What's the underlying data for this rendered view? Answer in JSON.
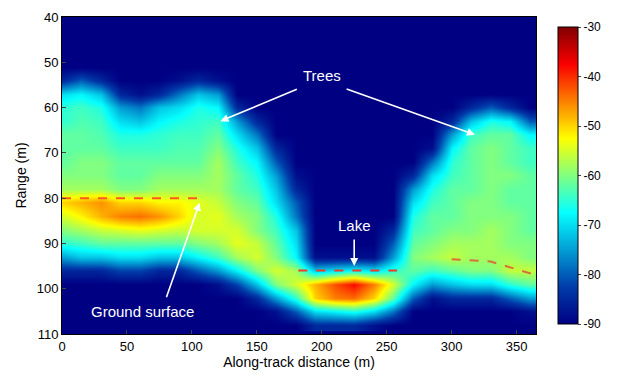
{
  "chart_data": {
    "type": "heatmap",
    "x_label": "Along-track distance (m)",
    "y_label": "Range (m)",
    "xlim": [
      0,
      365
    ],
    "xticks": [
      0,
      50,
      100,
      150,
      200,
      250,
      300,
      350
    ],
    "ylim": [
      110,
      40
    ],
    "yticks": [
      40,
      50,
      60,
      70,
      80,
      90,
      100,
      110
    ],
    "color": "Jet",
    "grid": false,
    "cells": {
      "x": [
        0,
        15,
        30,
        45,
        60,
        75,
        90,
        105,
        120,
        135,
        150,
        165,
        180,
        195,
        210,
        225,
        240,
        255,
        270,
        285,
        300,
        315,
        330,
        345,
        360
      ],
      "y": [
        42,
        45,
        48,
        51,
        54,
        57,
        60,
        63,
        66,
        69,
        72,
        75,
        78,
        81,
        84,
        87,
        90,
        93,
        96,
        99,
        102,
        105,
        108
      ],
      "columns": [
        [
          -90,
          -90,
          -90,
          -90,
          -85,
          -70,
          -65,
          -65,
          -62,
          -62,
          -62,
          -60,
          -58,
          -50,
          -55,
          -60,
          -65,
          -75,
          -85,
          -90,
          -90,
          -90,
          -90
        ],
        [
          -90,
          -90,
          -90,
          -90,
          -80,
          -68,
          -64,
          -63,
          -62,
          -62,
          -60,
          -60,
          -58,
          -48,
          -52,
          -58,
          -64,
          -72,
          -85,
          -90,
          -90,
          -90,
          -90
        ],
        [
          -90,
          -90,
          -90,
          -90,
          -85,
          -72,
          -66,
          -64,
          -63,
          -62,
          -60,
          -60,
          -58,
          -46,
          -48,
          -56,
          -62,
          -72,
          -85,
          -90,
          -90,
          -90,
          -90
        ],
        [
          -90,
          -90,
          -90,
          -90,
          -90,
          -85,
          -75,
          -70,
          -66,
          -64,
          -62,
          -62,
          -60,
          -50,
          -45,
          -55,
          -62,
          -70,
          -82,
          -90,
          -90,
          -90,
          -90
        ],
        [
          -90,
          -90,
          -90,
          -90,
          -90,
          -88,
          -78,
          -72,
          -66,
          -64,
          -62,
          -62,
          -60,
          -50,
          -44,
          -54,
          -62,
          -70,
          -82,
          -90,
          -90,
          -90,
          -90
        ],
        [
          -90,
          -90,
          -90,
          -90,
          -90,
          -85,
          -72,
          -68,
          -65,
          -64,
          -62,
          -60,
          -58,
          -52,
          -46,
          -55,
          -62,
          -72,
          -85,
          -90,
          -90,
          -90,
          -90
        ],
        [
          -90,
          -90,
          -90,
          -90,
          -88,
          -78,
          -70,
          -66,
          -64,
          -63,
          -62,
          -60,
          -58,
          -52,
          -50,
          -56,
          -62,
          -72,
          -85,
          -90,
          -90,
          -90,
          -90
        ],
        [
          -90,
          -90,
          -90,
          -90,
          -85,
          -72,
          -66,
          -65,
          -64,
          -63,
          -62,
          -60,
          -58,
          -54,
          -55,
          -55,
          -60,
          -68,
          -80,
          -90,
          -90,
          -90,
          -90
        ],
        [
          -90,
          -90,
          -90,
          -90,
          -88,
          -75,
          -68,
          -64,
          -62,
          -60,
          -58,
          -58,
          -58,
          -56,
          -54,
          -55,
          -58,
          -64,
          -75,
          -88,
          -90,
          -90,
          -90
        ],
        [
          -90,
          -90,
          -90,
          -90,
          -90,
          -90,
          -85,
          -75,
          -70,
          -66,
          -64,
          -62,
          -62,
          -60,
          -58,
          -55,
          -54,
          -58,
          -68,
          -82,
          -90,
          -90,
          -90
        ],
        [
          -90,
          -90,
          -90,
          -90,
          -90,
          -90,
          -90,
          -85,
          -78,
          -72,
          -68,
          -66,
          -64,
          -62,
          -60,
          -60,
          -56,
          -55,
          -60,
          -72,
          -85,
          -90,
          -90
        ],
        [
          -90,
          -90,
          -90,
          -90,
          -90,
          -90,
          -90,
          -90,
          -90,
          -85,
          -80,
          -75,
          -72,
          -70,
          -66,
          -64,
          -62,
          -60,
          -55,
          -60,
          -75,
          -88,
          -90
        ],
        [
          -90,
          -90,
          -90,
          -90,
          -90,
          -90,
          -90,
          -90,
          -90,
          -90,
          -90,
          -88,
          -85,
          -80,
          -78,
          -72,
          -70,
          -68,
          -58,
          -55,
          -65,
          -80,
          -90
        ],
        [
          -90,
          -90,
          -90,
          -90,
          -90,
          -90,
          -90,
          -90,
          -90,
          -90,
          -90,
          -90,
          -90,
          -90,
          -90,
          -90,
          -90,
          -88,
          -72,
          -48,
          -50,
          -70,
          -85
        ],
        [
          -90,
          -90,
          -90,
          -90,
          -90,
          -90,
          -90,
          -90,
          -90,
          -90,
          -90,
          -90,
          -90,
          -90,
          -90,
          -90,
          -90,
          -88,
          -70,
          -42,
          -45,
          -68,
          -85
        ],
        [
          -90,
          -90,
          -90,
          -90,
          -90,
          -90,
          -90,
          -90,
          -90,
          -90,
          -90,
          -90,
          -90,
          -90,
          -90,
          -90,
          -90,
          -88,
          -68,
          -38,
          -44,
          -66,
          -85
        ],
        [
          -90,
          -90,
          -90,
          -90,
          -90,
          -90,
          -90,
          -90,
          -90,
          -90,
          -90,
          -90,
          -90,
          -90,
          -90,
          -90,
          -90,
          -88,
          -70,
          -45,
          -50,
          -70,
          -88
        ],
        [
          -90,
          -90,
          -90,
          -90,
          -90,
          -90,
          -90,
          -90,
          -90,
          -90,
          -90,
          -90,
          -90,
          -90,
          -90,
          -85,
          -80,
          -75,
          -65,
          -55,
          -62,
          -78,
          -90
        ],
        [
          -90,
          -90,
          -90,
          -90,
          -90,
          -90,
          -90,
          -90,
          -90,
          -90,
          -90,
          -85,
          -75,
          -70,
          -66,
          -64,
          -62,
          -60,
          -62,
          -68,
          -80,
          -90,
          -90
        ],
        [
          -90,
          -90,
          -90,
          -90,
          -90,
          -90,
          -90,
          -90,
          -90,
          -88,
          -78,
          -70,
          -66,
          -64,
          -62,
          -62,
          -60,
          -58,
          -64,
          -75,
          -88,
          -90,
          -90
        ],
        [
          -90,
          -90,
          -90,
          -90,
          -90,
          -90,
          -90,
          -85,
          -75,
          -68,
          -65,
          -64,
          -62,
          -62,
          -62,
          -60,
          -58,
          -56,
          -62,
          -72,
          -85,
          -90,
          -90
        ],
        [
          -90,
          -90,
          -90,
          -90,
          -90,
          -90,
          -85,
          -72,
          -64,
          -62,
          -62,
          -62,
          -62,
          -60,
          -60,
          -60,
          -58,
          -58,
          -60,
          -70,
          -85,
          -90,
          -90
        ],
        [
          -90,
          -90,
          -90,
          -90,
          -90,
          -90,
          -80,
          -66,
          -62,
          -60,
          -60,
          -60,
          -60,
          -60,
          -60,
          -58,
          -58,
          -58,
          -60,
          -70,
          -85,
          -90,
          -90
        ],
        [
          -90,
          -90,
          -90,
          -90,
          -90,
          -90,
          -85,
          -68,
          -62,
          -62,
          -62,
          -60,
          -62,
          -62,
          -60,
          -60,
          -60,
          -58,
          -56,
          -65,
          -80,
          -90,
          -90
        ],
        [
          -90,
          -90,
          -90,
          -90,
          -90,
          -90,
          -90,
          -80,
          -68,
          -64,
          -64,
          -62,
          -62,
          -62,
          -62,
          -62,
          -60,
          -60,
          -56,
          -62,
          -75,
          -88,
          -90
        ]
      ]
    },
    "colorbar": {
      "range": [
        -90,
        -30
      ],
      "ticks": [
        -30,
        -40,
        -50,
        -60,
        -70,
        -80,
        -90
      ]
    },
    "series": [
      {
        "type": "line",
        "line_style": "dash",
        "color": "#ff5a1e",
        "x": [
          0,
          110
        ],
        "values": [
          80,
          80
        ]
      },
      {
        "type": "line",
        "line_style": "dash",
        "color": "#f03a28",
        "x": [
          182,
          258
        ],
        "values": [
          96,
          96
        ]
      },
      {
        "type": "line",
        "line_style": "dash",
        "color": "#d8703a",
        "x": [
          300,
          330,
          365
        ],
        "values": [
          93.5,
          94,
          97
        ]
      }
    ],
    "annotations": [
      {
        "text": "Trees",
        "x": 200,
        "y": 53,
        "arrows": [
          [
            122,
            63
          ],
          [
            318,
            66
          ]
        ]
      },
      {
        "text": "Lake",
        "x": 225,
        "y": 86,
        "arrows": [
          [
            225,
            95
          ]
        ]
      },
      {
        "text": "Ground surface",
        "x": 62,
        "y": 105,
        "arrows": [
          [
            106,
            81
          ]
        ]
      }
    ]
  }
}
